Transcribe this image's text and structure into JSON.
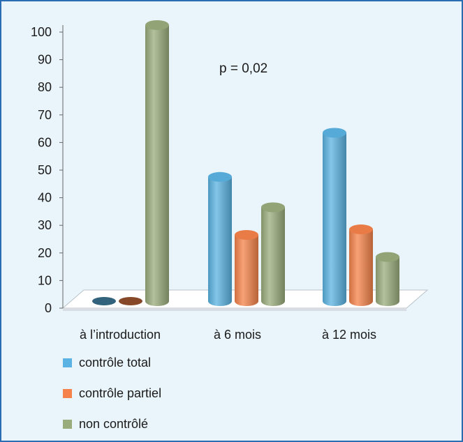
{
  "chart_data": {
    "type": "bar",
    "categories": [
      "à l’introduction",
      "à 6 mois",
      "à 12 mois"
    ],
    "series": [
      {
        "name": "contrôle total",
        "values": [
          0,
          45,
          61
        ],
        "color": "#5ab3e2"
      },
      {
        "name": "contrôle partiel",
        "values": [
          0,
          24,
          26
        ],
        "color": "#f5824a"
      },
      {
        "name": "non contrôlé",
        "values": [
          100,
          34,
          16
        ],
        "color": "#9aac7c"
      }
    ],
    "ylim": [
      0,
      100
    ],
    "yticks": [
      0,
      10,
      20,
      30,
      40,
      50,
      60,
      70,
      80,
      90,
      100
    ],
    "annotation": "p = 0,02",
    "legend_position": "bottom-left",
    "style": "3d-cylinder",
    "title": "",
    "xlabel": "",
    "ylabel": ""
  }
}
